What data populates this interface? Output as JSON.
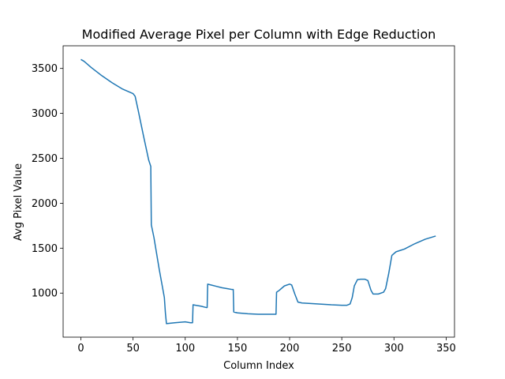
{
  "chart_data": {
    "type": "line",
    "title": "Modified Average Pixel per Column with Edge Reduction",
    "xlabel": "Column Index",
    "ylabel": "Avg Pixel Value",
    "xlim": [
      -17,
      358
    ],
    "ylim": [
      510,
      3752
    ],
    "xticks": [
      0,
      50,
      100,
      150,
      200,
      250,
      300,
      350
    ],
    "yticks": [
      1000,
      1500,
      2000,
      2500,
      3000,
      3500
    ],
    "grid": false,
    "legend": "none",
    "series": [
      {
        "color": "#1f77b4",
        "x": [
          0,
          3,
          10,
          20,
          30,
          40,
          50,
          52,
          55,
          60,
          65,
          67,
          67.5,
          70,
          75,
          80,
          81,
          82,
          90,
          100,
          105,
          107,
          107.5,
          110,
          115,
          120,
          121,
          121.5,
          125,
          130,
          135,
          140,
          145,
          146,
          146.5,
          150,
          160,
          170,
          180,
          186,
          187,
          187.5,
          190,
          195,
          200,
          202,
          205,
          208,
          212,
          220,
          240,
          250,
          255,
          258,
          260,
          262,
          265,
          268,
          272,
          275,
          278,
          280,
          285,
          290,
          292,
          295,
          298,
          302,
          310,
          320,
          330,
          340
        ],
        "y": [
          3600,
          3580,
          3510,
          3420,
          3340,
          3270,
          3220,
          3190,
          3030,
          2750,
          2480,
          2410,
          1760,
          1620,
          1270,
          950,
          780,
          660,
          670,
          680,
          670,
          670,
          870,
          865,
          855,
          840,
          840,
          1100,
          1090,
          1075,
          1060,
          1050,
          1040,
          1040,
          790,
          780,
          770,
          765,
          765,
          765,
          765,
          1010,
          1030,
          1080,
          1100,
          1090,
          990,
          900,
          890,
          885,
          870,
          865,
          865,
          880,
          950,
          1080,
          1150,
          1155,
          1155,
          1140,
          1030,
          990,
          990,
          1010,
          1050,
          1220,
          1420,
          1460,
          1490,
          1550,
          1600,
          1635
        ]
      }
    ]
  }
}
